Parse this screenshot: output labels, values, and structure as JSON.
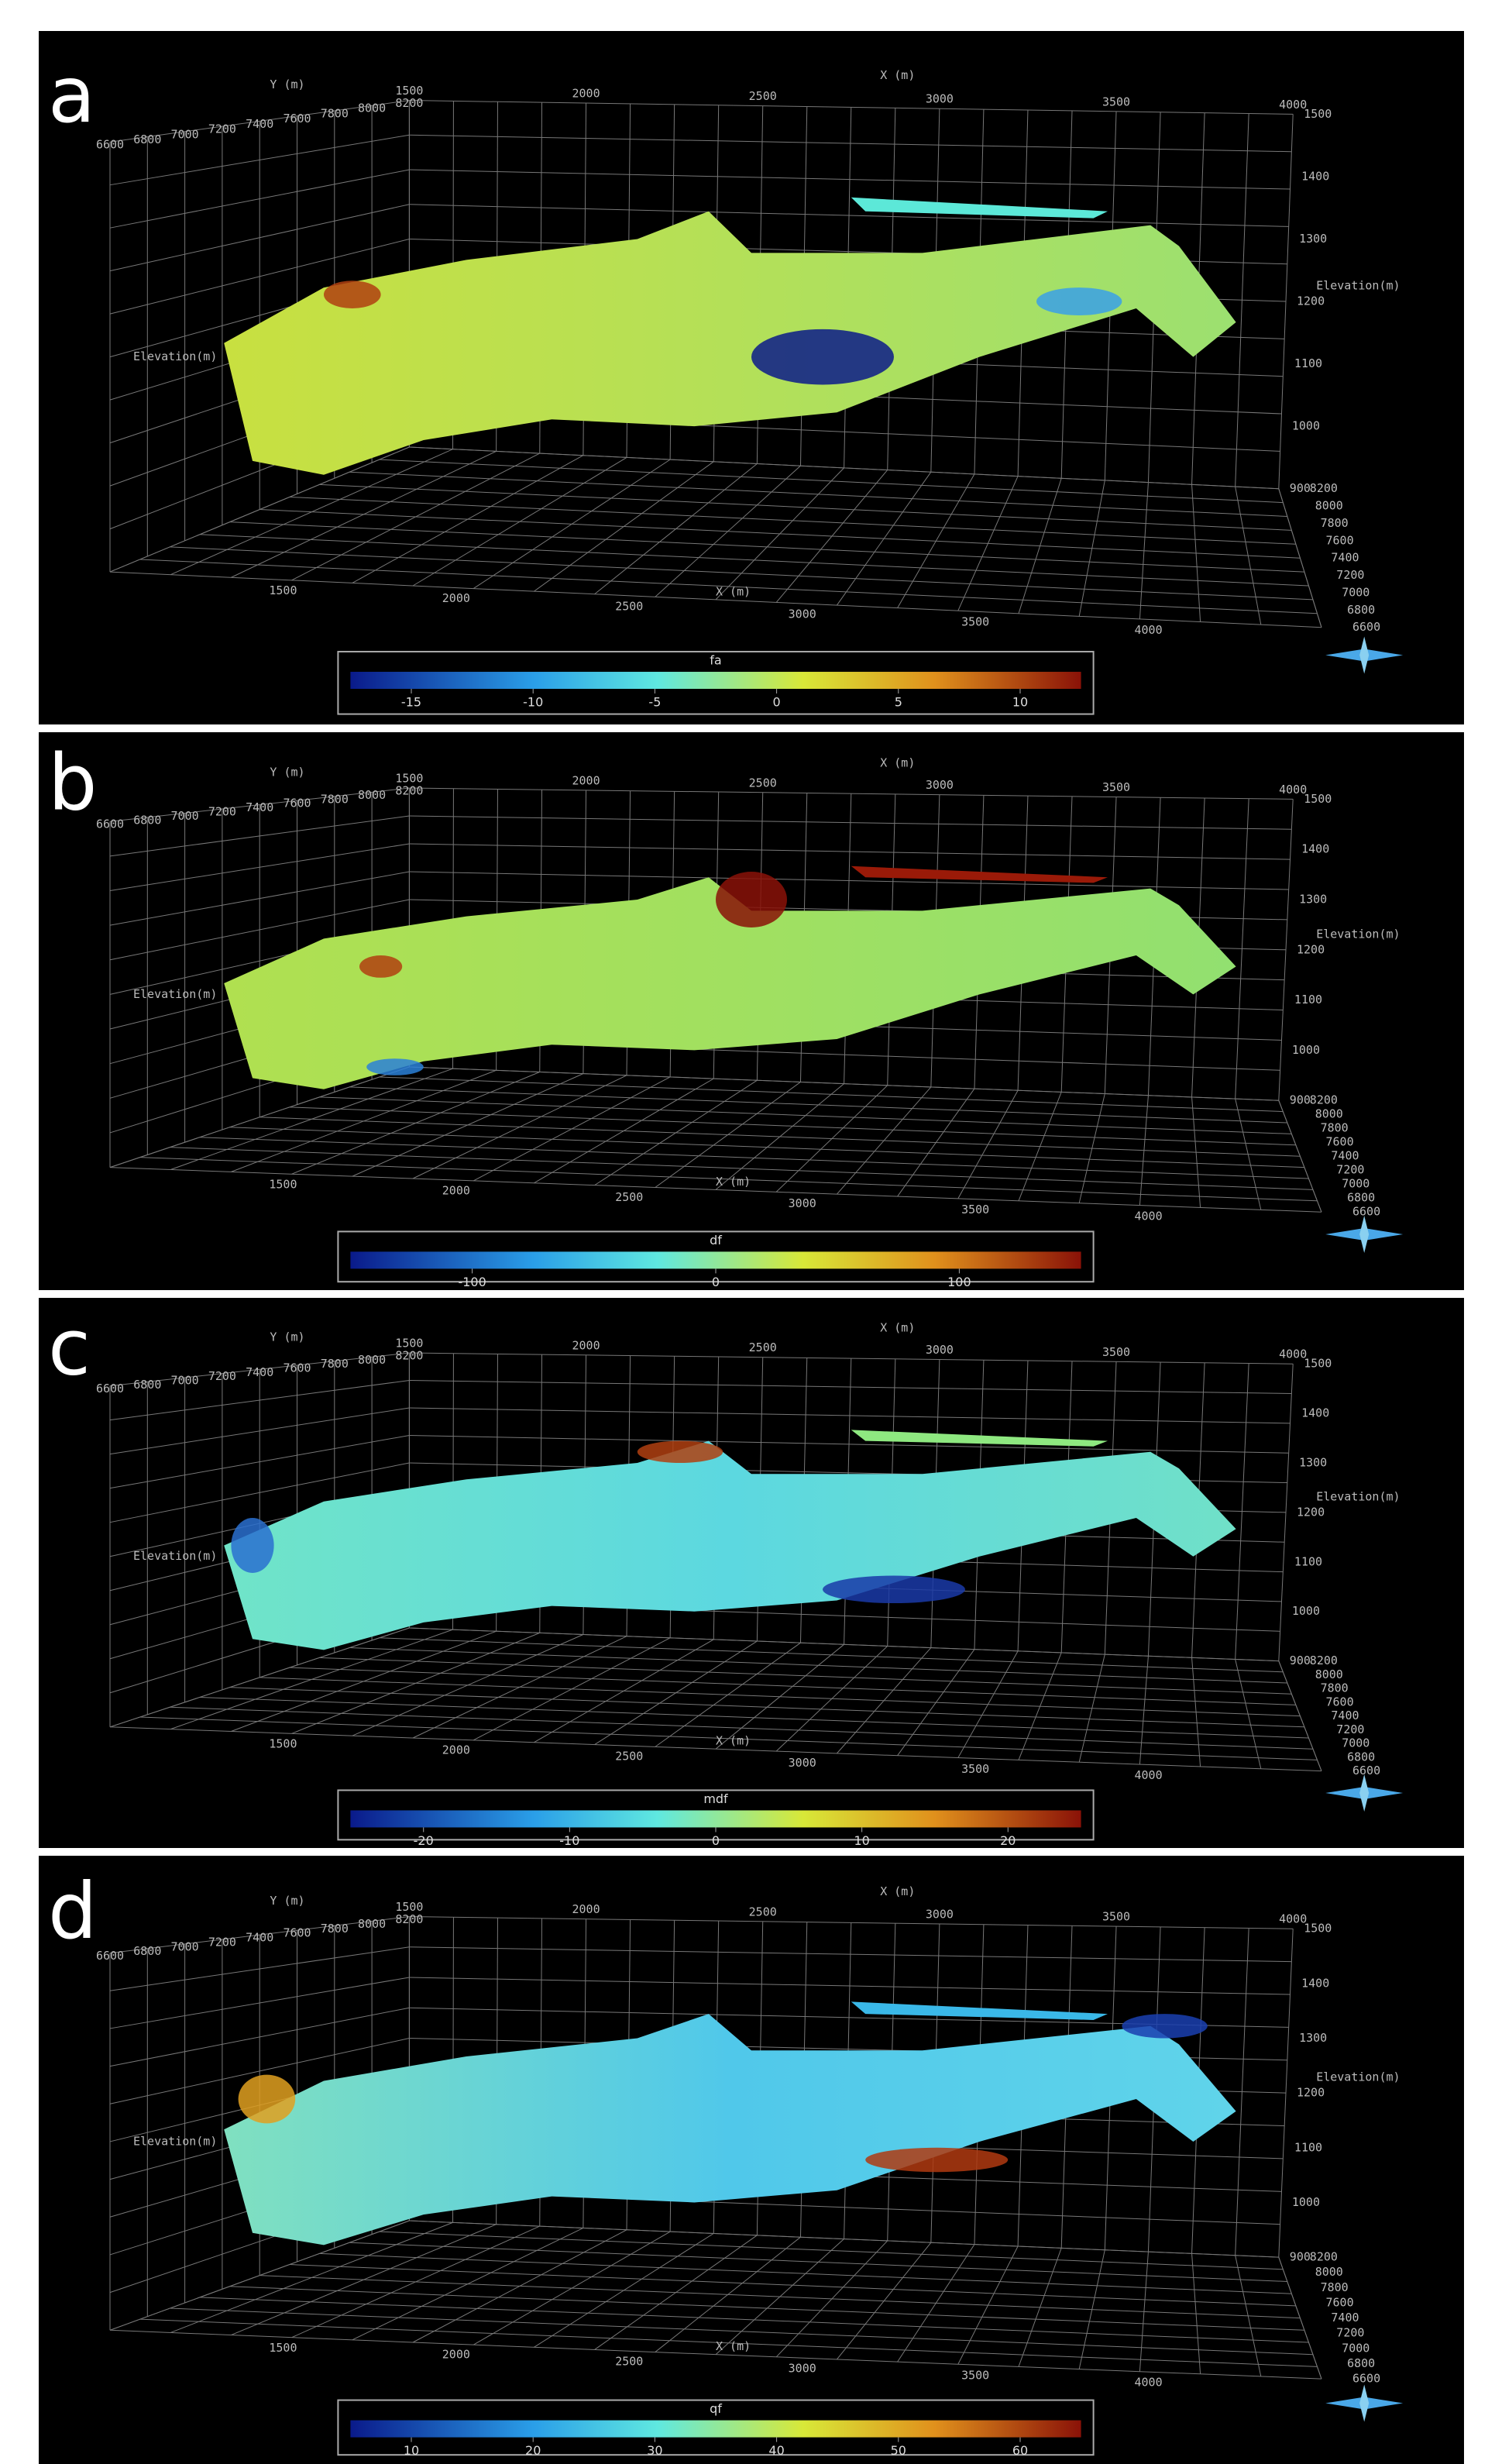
{
  "panels": [
    {
      "label": "a",
      "colorbar": {
        "title": "fa",
        "ticks": [
          "-15",
          "-10",
          "-5",
          "0",
          "5",
          "10"
        ]
      },
      "x_axis": {
        "title": "X (m)",
        "ticks": [
          "1500",
          "2000",
          "2500",
          "3000",
          "3500",
          "4000"
        ]
      },
      "y_axis": {
        "title": "Y (m)",
        "ticks": [
          "6600",
          "6800",
          "7000",
          "7200",
          "7400",
          "7600",
          "7800",
          "8000",
          "8200"
        ]
      },
      "elevation": {
        "title": "Elevation(m)",
        "ticks": [
          "900",
          "1000",
          "1100",
          "1200",
          "1300",
          "1400",
          "1500"
        ]
      }
    },
    {
      "label": "b",
      "colorbar": {
        "title": "df",
        "ticks": [
          "-100",
          "0",
          "100"
        ]
      },
      "x_axis": {
        "title": "X (m)",
        "ticks": [
          "1500",
          "2000",
          "2500",
          "3000",
          "3500",
          "4000"
        ]
      },
      "y_axis": {
        "title": "Y (m)",
        "ticks": [
          "6600",
          "6800",
          "7000",
          "7200",
          "7400",
          "7600",
          "7800",
          "8000",
          "8200"
        ]
      },
      "elevation": {
        "title": "Elevation(m)",
        "ticks": [
          "900",
          "1000",
          "1100",
          "1200",
          "1300",
          "1400",
          "1500"
        ]
      }
    },
    {
      "label": "c",
      "colorbar": {
        "title": "mdf",
        "ticks": [
          "-20",
          "-10",
          "0",
          "10",
          "20"
        ]
      },
      "x_axis": {
        "title": "X (m)",
        "ticks": [
          "1500",
          "2000",
          "2500",
          "3000",
          "3500",
          "4000"
        ]
      },
      "y_axis": {
        "title": "Y (m)",
        "ticks": [
          "6600",
          "6800",
          "7000",
          "7200",
          "7400",
          "7600",
          "7800",
          "8000",
          "8200"
        ]
      },
      "elevation": {
        "title": "Elevation(m)",
        "ticks": [
          "900",
          "1000",
          "1100",
          "1200",
          "1300",
          "1400",
          "1500"
        ]
      }
    },
    {
      "label": "d",
      "colorbar": {
        "title": "qf",
        "ticks": [
          "10",
          "20",
          "30",
          "40",
          "50",
          "60"
        ]
      },
      "x_axis": {
        "title": "X (m)",
        "ticks": [
          "1500",
          "2000",
          "2500",
          "3000",
          "3500",
          "4000"
        ]
      },
      "y_axis": {
        "title": "Y (m)",
        "ticks": [
          "6600",
          "6800",
          "7000",
          "7200",
          "7400",
          "7600",
          "7800",
          "8000",
          "8200"
        ]
      },
      "elevation": {
        "title": "Elevation(m)",
        "ticks": [
          "900",
          "1000",
          "1100",
          "1200",
          "1300",
          "1400",
          "1500"
        ]
      }
    }
  ]
}
